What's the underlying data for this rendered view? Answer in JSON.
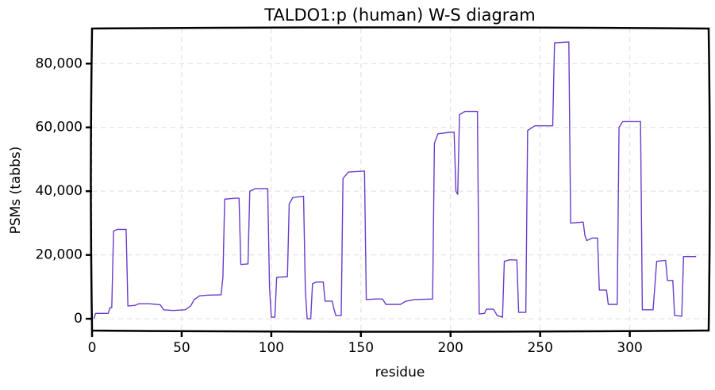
{
  "chart_data": {
    "type": "line",
    "title": "TALDO1:p (human) W-S diagram",
    "xlabel": "residue",
    "ylabel": "PSMs (tabbs)",
    "xlim": [
      0,
      344
    ],
    "ylim": [
      -3700,
      91000
    ],
    "xticks": [
      0,
      50,
      100,
      150,
      200,
      250,
      300
    ],
    "yticks": [
      0,
      {
        "value": 20000,
        "label": "20,000"
      },
      {
        "value": 40000,
        "label": "40,000"
      },
      {
        "value": 60000,
        "label": "60,000"
      },
      {
        "value": 80000,
        "label": "80,000"
      }
    ],
    "grid": true,
    "series": [
      {
        "name": "TALDO1:p",
        "color": "#6a3ccc",
        "x": [
          1,
          2,
          9,
          10,
          11,
          12,
          14,
          19,
          20,
          24,
          26,
          32,
          38,
          40,
          45,
          52,
          55,
          57,
          60,
          65,
          72,
          73,
          74,
          80,
          82,
          83,
          87,
          88,
          91,
          98,
          99,
          100,
          102,
          103,
          109,
          110,
          112,
          118,
          119,
          120,
          122,
          123,
          125,
          129,
          130,
          134,
          135,
          136,
          139,
          140,
          143,
          152,
          153,
          158,
          162,
          164,
          172,
          175,
          180,
          190,
          191,
          193,
          200,
          202,
          203,
          204,
          205,
          208,
          215,
          216,
          219,
          220,
          224,
          226,
          229,
          230,
          233,
          237,
          238,
          242,
          243,
          247,
          257,
          258,
          266,
          267,
          274,
          275,
          276,
          279,
          282,
          283,
          287,
          288,
          293,
          294,
          296,
          306,
          307,
          313,
          315,
          320,
          321,
          324,
          325,
          329,
          330,
          337
        ],
        "values": [
          0,
          1700,
          1700,
          3500,
          3500,
          27500,
          28000,
          28000,
          4000,
          4200,
          4700,
          4700,
          4400,
          2800,
          2600,
          2800,
          4000,
          6000,
          7200,
          7400,
          7500,
          13000,
          37500,
          37800,
          37800,
          17000,
          17200,
          40000,
          40800,
          40800,
          10000,
          500,
          500,
          13000,
          13200,
          36000,
          38000,
          38400,
          9000,
          0,
          0,
          11000,
          11500,
          11500,
          5500,
          5500,
          3000,
          1000,
          1000,
          44000,
          46000,
          46300,
          6000,
          6200,
          6200,
          4500,
          4500,
          5500,
          6000,
          6200,
          55000,
          58000,
          58500,
          58500,
          40000,
          39000,
          64000,
          65000,
          65000,
          1500,
          1700,
          3000,
          3000,
          1000,
          500,
          18000,
          18500,
          18400,
          2000,
          2000,
          59000,
          60500,
          60500,
          86500,
          86800,
          30000,
          30300,
          26000,
          24500,
          25300,
          25300,
          9000,
          9000,
          4500,
          4500,
          60000,
          61800,
          61800,
          2800,
          2800,
          18000,
          18300,
          12000,
          12000,
          1000,
          800,
          19500,
          19500
        ]
      }
    ]
  }
}
